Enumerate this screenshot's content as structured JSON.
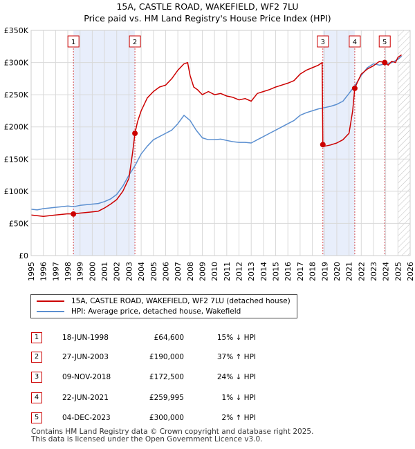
{
  "title": "15A, CASTLE ROAD, WAKEFIELD, WF2 7LU",
  "subtitle": "Price paid vs. HM Land Registry's House Price Index (HPI)",
  "colors": {
    "price_line": "#cc0000",
    "hpi_line": "#5b8fd0",
    "shade": "#e8eefb",
    "grid": "#d9d9d9",
    "marker_border": "#cc0000"
  },
  "chart_data": {
    "type": "line",
    "title": "15A, CASTLE ROAD, WAKEFIELD, WF2 7LU",
    "xlim": [
      1995,
      2026
    ],
    "ylim": [
      0,
      350000
    ],
    "x_ticks": [
      "1995",
      "1996",
      "1997",
      "1998",
      "1999",
      "2000",
      "2001",
      "2002",
      "2003",
      "2004",
      "2005",
      "2006",
      "2007",
      "2008",
      "2009",
      "2010",
      "2011",
      "2012",
      "2013",
      "2014",
      "2015",
      "2016",
      "2017",
      "2018",
      "2019",
      "2020",
      "2021",
      "2022",
      "2023",
      "2024",
      "2025",
      "2026"
    ],
    "y_ticks": [
      {
        "value": 0,
        "label": "£0"
      },
      {
        "value": 50000,
        "label": "£50K"
      },
      {
        "value": 100000,
        "label": "£100K"
      },
      {
        "value": 150000,
        "label": "£150K"
      },
      {
        "value": 200000,
        "label": "£200K"
      },
      {
        "value": 250000,
        "label": "£250K"
      },
      {
        "value": 300000,
        "label": "£300K"
      },
      {
        "value": 350000,
        "label": "£350K"
      }
    ],
    "shaded_periods": [
      [
        1998.46,
        2003.49
      ],
      [
        2018.86,
        2021.47
      ],
      [
        2023.92,
        2024.0
      ]
    ],
    "future_hatch_from": 2025.0,
    "series": [
      {
        "name": "15A, CASTLE ROAD, WAKEFIELD, WF2 7LU (detached house)",
        "color": "#cc0000",
        "x": [
          1995.0,
          1995.5,
          1996.0,
          1996.5,
          1997.0,
          1997.5,
          1998.0,
          1998.46,
          1999.0,
          1999.5,
          2000.0,
          2000.5,
          2001.0,
          2001.5,
          2002.0,
          2002.5,
          2003.0,
          2003.3,
          2003.49,
          2003.7,
          2004.0,
          2004.5,
          2005.0,
          2005.5,
          2006.0,
          2006.5,
          2007.0,
          2007.5,
          2007.8,
          2008.0,
          2008.3,
          2008.6,
          2009.0,
          2009.5,
          2010.0,
          2010.5,
          2011.0,
          2011.5,
          2012.0,
          2012.5,
          2013.0,
          2013.5,
          2014.0,
          2014.5,
          2015.0,
          2015.5,
          2016.0,
          2016.5,
          2017.0,
          2017.5,
          2018.0,
          2018.5,
          2018.8,
          2018.86,
          2019.0,
          2019.5,
          2020.0,
          2020.5,
          2021.0,
          2021.3,
          2021.47,
          2021.7,
          2022.0,
          2022.5,
          2023.0,
          2023.5,
          2023.92,
          2024.2,
          2024.5,
          2024.8,
          2025.0,
          2025.3
        ],
        "values": [
          63000,
          62000,
          61000,
          62000,
          63000,
          64000,
          65000,
          64600,
          66000,
          67000,
          68000,
          69000,
          74000,
          80000,
          87000,
          100000,
          120000,
          160000,
          190000,
          208000,
          225000,
          245000,
          255000,
          262000,
          265000,
          275000,
          288000,
          298000,
          300000,
          280000,
          262000,
          258000,
          250000,
          255000,
          250000,
          252000,
          248000,
          246000,
          242000,
          244000,
          240000,
          252000,
          255000,
          258000,
          262000,
          265000,
          268000,
          272000,
          282000,
          288000,
          292000,
          296000,
          300000,
          172500,
          170000,
          172000,
          175000,
          180000,
          190000,
          225000,
          259995,
          270000,
          282000,
          290000,
          295000,
          302000,
          300000,
          296000,
          302000,
          300000,
          308000,
          312000
        ]
      },
      {
        "name": "HPI: Average price, detached house, Wakefield",
        "color": "#5b8fd0",
        "x": [
          1995.0,
          1995.5,
          1996.0,
          1996.5,
          1997.0,
          1997.5,
          1998.0,
          1998.5,
          1999.0,
          1999.5,
          2000.0,
          2000.5,
          2001.0,
          2001.5,
          2002.0,
          2002.5,
          2003.0,
          2003.5,
          2004.0,
          2004.5,
          2005.0,
          2005.5,
          2006.0,
          2006.5,
          2007.0,
          2007.5,
          2008.0,
          2008.5,
          2009.0,
          2009.5,
          2010.0,
          2010.5,
          2011.0,
          2011.5,
          2012.0,
          2012.5,
          2013.0,
          2013.5,
          2014.0,
          2014.5,
          2015.0,
          2015.5,
          2016.0,
          2016.5,
          2017.0,
          2017.5,
          2018.0,
          2018.5,
          2019.0,
          2019.5,
          2020.0,
          2020.5,
          2021.0,
          2021.5,
          2022.0,
          2022.5,
          2023.0,
          2023.5,
          2024.0,
          2024.5,
          2025.0,
          2025.3
        ],
        "values": [
          72000,
          71000,
          73000,
          74000,
          75000,
          76000,
          77000,
          76000,
          78000,
          79000,
          80000,
          81000,
          84000,
          88000,
          95000,
          108000,
          125000,
          140000,
          158000,
          170000,
          180000,
          185000,
          190000,
          195000,
          205000,
          218000,
          210000,
          195000,
          183000,
          180000,
          180000,
          181000,
          179000,
          177000,
          176000,
          176000,
          175000,
          180000,
          185000,
          190000,
          195000,
          200000,
          205000,
          210000,
          218000,
          222000,
          225000,
          228000,
          230000,
          232000,
          235000,
          240000,
          252000,
          265000,
          280000,
          292000,
          298000,
          296000,
          298000,
          300000,
          305000,
          310000
        ]
      }
    ],
    "sales": [
      {
        "label": "1",
        "x": 1998.46,
        "value": 64600
      },
      {
        "label": "2",
        "x": 2003.49,
        "value": 190000
      },
      {
        "label": "3",
        "x": 2018.86,
        "value": 172500
      },
      {
        "label": "4",
        "x": 2021.47,
        "value": 259995
      },
      {
        "label": "5",
        "x": 2023.92,
        "value": 300000
      }
    ]
  },
  "legend": {
    "price_label": "15A, CASTLE ROAD, WAKEFIELD, WF2 7LU (detached house)",
    "hpi_label": "HPI: Average price, detached house, Wakefield"
  },
  "sales_table": [
    {
      "num": "1",
      "date": "18-JUN-1998",
      "price": "£64,600",
      "hpi": "15% ↓ HPI"
    },
    {
      "num": "2",
      "date": "27-JUN-2003",
      "price": "£190,000",
      "hpi": "37% ↑ HPI"
    },
    {
      "num": "3",
      "date": "09-NOV-2018",
      "price": "£172,500",
      "hpi": "24% ↓ HPI"
    },
    {
      "num": "4",
      "date": "22-JUN-2021",
      "price": "£259,995",
      "hpi": "1% ↓ HPI"
    },
    {
      "num": "5",
      "date": "04-DEC-2023",
      "price": "£300,000",
      "hpi": "2% ↑ HPI"
    }
  ],
  "footer": {
    "line1": "Contains HM Land Registry data © Crown copyright and database right 2025.",
    "line2": "This data is licensed under the Open Government Licence v3.0."
  }
}
